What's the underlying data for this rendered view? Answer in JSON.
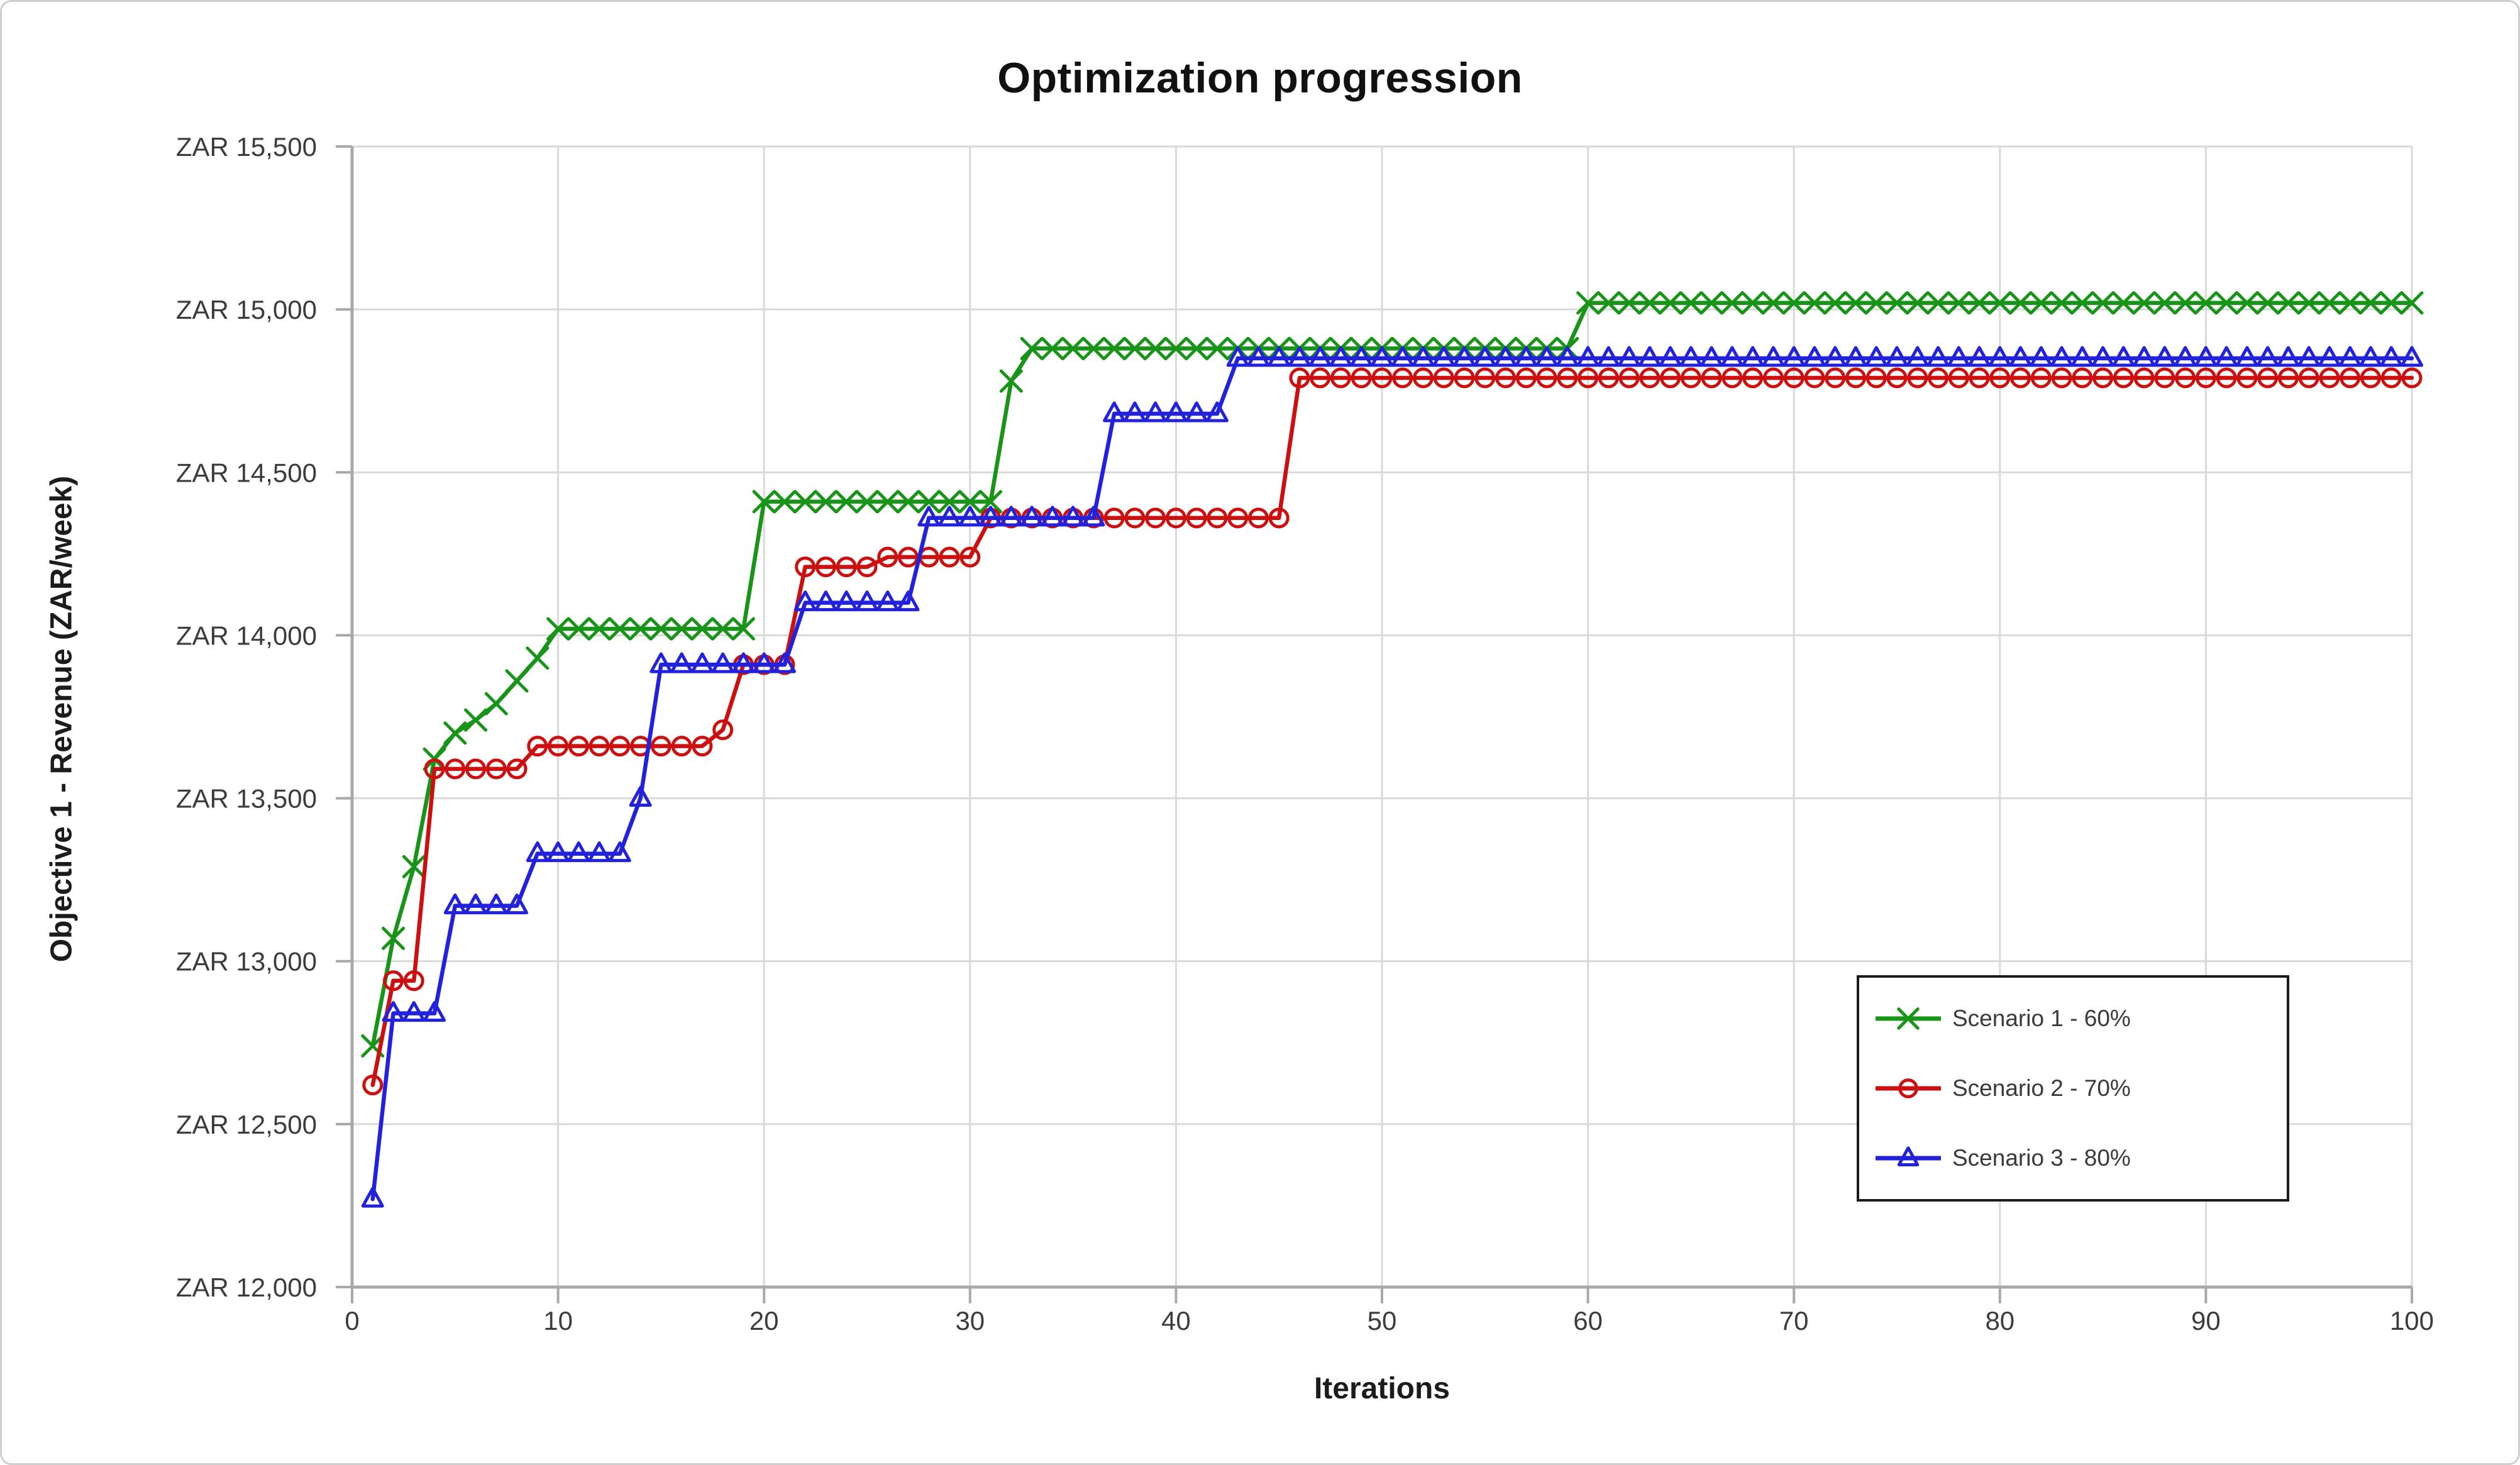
{
  "chart_data": {
    "type": "line",
    "title": "Optimization progression",
    "xlabel": "Iterations",
    "ylabel": "Objective 1 - Revenue (ZAR/week)",
    "x_range": [
      0,
      100
    ],
    "y_range": [
      12000,
      15500
    ],
    "grid": true,
    "legend_position": "inside-right",
    "x_ticks": [
      0,
      10,
      20,
      30,
      40,
      50,
      60,
      70,
      80,
      90,
      100
    ],
    "y_ticks": [
      {
        "value": 12000,
        "label": "ZAR 12,000"
      },
      {
        "value": 12500,
        "label": "ZAR 12,500"
      },
      {
        "value": 13000,
        "label": "ZAR 13,000"
      },
      {
        "value": 13500,
        "label": "ZAR 13,500"
      },
      {
        "value": 14000,
        "label": "ZAR 14,000"
      },
      {
        "value": 14500,
        "label": "ZAR 14,500"
      },
      {
        "value": 15000,
        "label": "ZAR 15,000"
      },
      {
        "value": 15500,
        "label": "ZAR 15,500"
      }
    ],
    "series": [
      {
        "name": "Scenario 1 - 60%",
        "color": "#189418",
        "marker": "x",
        "segments": [
          [
            1,
            1,
            12740
          ],
          [
            2,
            2,
            13070
          ],
          [
            3,
            3,
            13290
          ],
          [
            4,
            4,
            13620
          ],
          [
            5,
            5,
            13700
          ],
          [
            6,
            6,
            13740
          ],
          [
            7,
            7,
            13790
          ],
          [
            8,
            8,
            13860
          ],
          [
            9,
            9,
            13930
          ],
          [
            10,
            19,
            14020
          ],
          [
            20,
            31,
            14410
          ],
          [
            32,
            32,
            14780
          ],
          [
            33,
            59,
            14880
          ],
          [
            60,
            100,
            15020
          ]
        ]
      },
      {
        "name": "Scenario 2 - 70%",
        "color": "#cc1010",
        "marker": "circle",
        "segments": [
          [
            1,
            1,
            12620
          ],
          [
            2,
            3,
            12940
          ],
          [
            4,
            8,
            13590
          ],
          [
            9,
            17,
            13660
          ],
          [
            18,
            18,
            13710
          ],
          [
            19,
            21,
            13910
          ],
          [
            22,
            25,
            14210
          ],
          [
            26,
            30,
            14240
          ],
          [
            31,
            45,
            14360
          ],
          [
            46,
            100,
            14790
          ]
        ]
      },
      {
        "name": "Scenario 3 - 80%",
        "color": "#2222dd",
        "marker": "triangle",
        "segments": [
          [
            1,
            1,
            12270
          ],
          [
            2,
            4,
            12840
          ],
          [
            5,
            8,
            13170
          ],
          [
            9,
            13,
            13330
          ],
          [
            14,
            14,
            13500
          ],
          [
            15,
            21,
            13910
          ],
          [
            22,
            27,
            14100
          ],
          [
            28,
            36,
            14360
          ],
          [
            37,
            42,
            14680
          ],
          [
            43,
            100,
            14850
          ]
        ]
      }
    ],
    "style_colors": {
      "gridline": "#d9d9d9",
      "axis_line": "#a9a9a9",
      "tick_label": "#3c3c3c"
    }
  }
}
